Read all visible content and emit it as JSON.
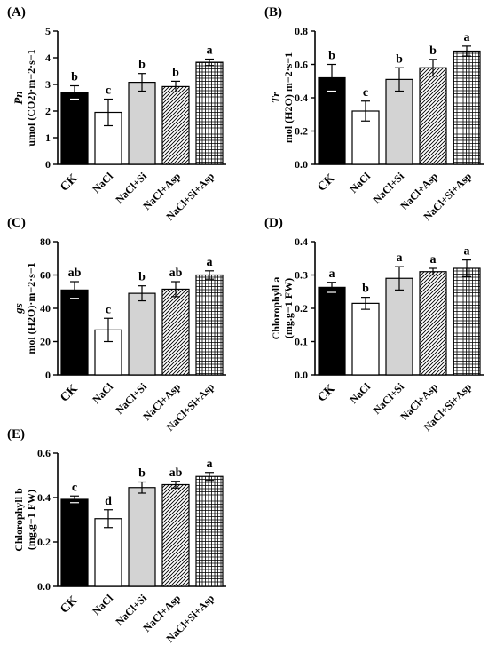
{
  "colors": {
    "axis": "#000000",
    "ck": "#000000",
    "nacl": "#ffffff",
    "si": "#d3d3d3",
    "asp_hatch": "#000000",
    "grid_hatch": "#000000"
  },
  "chart_data": [
    {
      "type": "bar",
      "panel_label": "(A)",
      "ylabel_lines": [
        "Pn",
        "umol (CO2)·m−2·s−1"
      ],
      "categories": [
        "CK",
        "NaCl",
        "NaCl+Si",
        "NaCl+Asp",
        "NaCl+Si+Asp"
      ],
      "values": [
        2.7,
        1.95,
        3.08,
        2.92,
        3.83
      ],
      "errors": [
        0.25,
        0.5,
        0.33,
        0.2,
        0.12
      ],
      "letters": [
        "b",
        "c",
        "b",
        "b",
        "a"
      ],
      "ylim": [
        0,
        5
      ],
      "yticks": [
        "0",
        "1",
        "2",
        "3",
        "4",
        "5"
      ],
      "ytick_values": [
        0,
        1,
        2,
        3,
        4,
        5
      ]
    },
    {
      "type": "bar",
      "panel_label": "(B)",
      "ylabel_lines": [
        "Tr",
        "mol (H2O) m−2·s−1"
      ],
      "categories": [
        "CK",
        "NaCl",
        "NaCl+Si",
        "NaCl+Asp",
        "NaCl+Si+Asp"
      ],
      "values": [
        0.52,
        0.32,
        0.51,
        0.58,
        0.68
      ],
      "errors": [
        0.08,
        0.06,
        0.07,
        0.05,
        0.03
      ],
      "letters": [
        "b",
        "c",
        "b",
        "b",
        "a"
      ],
      "ylim": [
        0,
        0.8
      ],
      "yticks": [
        "0.0",
        "0.2",
        "0.4",
        "0.6",
        "0.8"
      ],
      "ytick_values": [
        0,
        0.2,
        0.4,
        0.6,
        0.8
      ]
    },
    {
      "type": "bar",
      "panel_label": "(C)",
      "ylabel_lines": [
        "gs",
        "mol (H2O)·m−2·s−1"
      ],
      "categories": [
        "CK",
        "NaCl",
        "NaCl+Si",
        "NaCl+Asp",
        "NaCl+Si+Asp"
      ],
      "values": [
        51,
        27,
        49,
        51.5,
        60
      ],
      "errors": [
        5,
        7,
        4.5,
        4.5,
        2.5
      ],
      "letters": [
        "ab",
        "c",
        "b",
        "ab",
        "a"
      ],
      "ylim": [
        0,
        80
      ],
      "yticks": [
        "0",
        "20",
        "40",
        "60",
        "80"
      ],
      "ytick_values": [
        0,
        20,
        40,
        60,
        80
      ]
    },
    {
      "type": "bar",
      "panel_label": "(D)",
      "ylabel_lines": [
        "Chlorophyll a",
        "(mg.g−1 FW)"
      ],
      "categories": [
        "CK",
        "NaCl",
        "NaCl+Si",
        "NaCl+Asp",
        "NaCl+Si+Asp"
      ],
      "values": [
        0.263,
        0.215,
        0.29,
        0.31,
        0.32
      ],
      "errors": [
        0.015,
        0.018,
        0.035,
        0.01,
        0.025
      ],
      "letters": [
        "a",
        "b",
        "a",
        "a",
        "a"
      ],
      "ylim": [
        0,
        0.4
      ],
      "yticks": [
        "0.0",
        "0.1",
        "0.2",
        "0.3",
        "0.4"
      ],
      "ytick_values": [
        0,
        0.1,
        0.2,
        0.3,
        0.4
      ]
    },
    {
      "type": "bar",
      "panel_label": "(E)",
      "ylabel_lines": [
        "Chlorophyll b",
        "(mg.g−1 FW)"
      ],
      "categories": [
        "CK",
        "NaCl",
        "NaCl+Si",
        "NaCl+Asp",
        "NaCl+Si+Asp"
      ],
      "values": [
        0.392,
        0.305,
        0.445,
        0.458,
        0.495
      ],
      "errors": [
        0.015,
        0.04,
        0.025,
        0.015,
        0.018
      ],
      "letters": [
        "c",
        "d",
        "b",
        "ab",
        "a"
      ],
      "ylim": [
        0,
        0.6
      ],
      "yticks": [
        "0.0",
        "0.2",
        "0.4",
        "0.6"
      ],
      "ytick_values": [
        0,
        0.2,
        0.4,
        0.6
      ]
    }
  ]
}
